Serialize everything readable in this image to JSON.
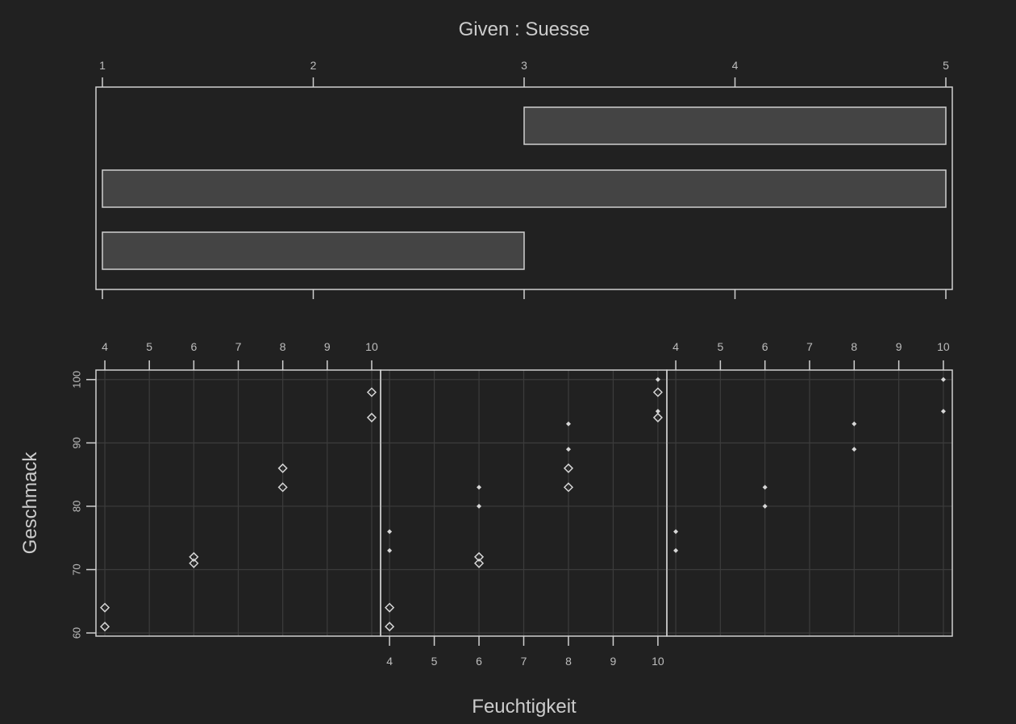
{
  "chart_data": {
    "type": "scatter",
    "title": "Given : Suesse",
    "xlabel": "Feuchtigkeit",
    "ylabel": "Geschmack",
    "given": {
      "variable": "Suesse",
      "xlim": [
        1,
        5
      ],
      "ticks": [
        1,
        2,
        3,
        4,
        5
      ],
      "intervals": [
        [
          3,
          5
        ],
        [
          1,
          5
        ],
        [
          1,
          3
        ]
      ]
    },
    "panels_xlim": [
      3.8,
      10.2
    ],
    "ylim": [
      59.5,
      101.5
    ],
    "x_ticks": [
      4,
      5,
      6,
      7,
      8,
      9,
      10
    ],
    "y_ticks": [
      60,
      70,
      80,
      90,
      100
    ],
    "grid": true,
    "panels": [
      {
        "name": "1",
        "x_tick_position": "top",
        "points": [
          {
            "x": 4,
            "y": 64,
            "marker": "diamond"
          },
          {
            "x": 4,
            "y": 61,
            "marker": "diamond"
          },
          {
            "x": 6,
            "y": 72,
            "marker": "diamond"
          },
          {
            "x": 6,
            "y": 71,
            "marker": "diamond"
          },
          {
            "x": 8,
            "y": 86,
            "marker": "diamond"
          },
          {
            "x": 8,
            "y": 83,
            "marker": "diamond"
          },
          {
            "x": 10,
            "y": 98,
            "marker": "diamond"
          },
          {
            "x": 10,
            "y": 94,
            "marker": "diamond"
          }
        ]
      },
      {
        "name": "2",
        "x_tick_position": "bottom",
        "points": [
          {
            "x": 4,
            "y": 64,
            "marker": "diamond"
          },
          {
            "x": 4,
            "y": 61,
            "marker": "diamond"
          },
          {
            "x": 6,
            "y": 72,
            "marker": "diamond"
          },
          {
            "x": 6,
            "y": 71,
            "marker": "diamond"
          },
          {
            "x": 8,
            "y": 86,
            "marker": "diamond"
          },
          {
            "x": 8,
            "y": 83,
            "marker": "diamond"
          },
          {
            "x": 10,
            "y": 98,
            "marker": "diamond"
          },
          {
            "x": 10,
            "y": 94,
            "marker": "diamond"
          },
          {
            "x": 4,
            "y": 76,
            "marker": "dot"
          },
          {
            "x": 4,
            "y": 73,
            "marker": "dot"
          },
          {
            "x": 6,
            "y": 83,
            "marker": "dot"
          },
          {
            "x": 6,
            "y": 80,
            "marker": "dot"
          },
          {
            "x": 8,
            "y": 93,
            "marker": "dot"
          },
          {
            "x": 8,
            "y": 89,
            "marker": "dot"
          },
          {
            "x": 10,
            "y": 100,
            "marker": "dot"
          },
          {
            "x": 10,
            "y": 95,
            "marker": "dot"
          }
        ]
      },
      {
        "name": "3",
        "x_tick_position": "top",
        "points": [
          {
            "x": 4,
            "y": 76,
            "marker": "dot"
          },
          {
            "x": 4,
            "y": 73,
            "marker": "dot"
          },
          {
            "x": 6,
            "y": 83,
            "marker": "dot"
          },
          {
            "x": 6,
            "y": 80,
            "marker": "dot"
          },
          {
            "x": 8,
            "y": 93,
            "marker": "dot"
          },
          {
            "x": 8,
            "y": 89,
            "marker": "dot"
          },
          {
            "x": 10,
            "y": 100,
            "marker": "dot"
          },
          {
            "x": 10,
            "y": 95,
            "marker": "dot"
          }
        ]
      }
    ]
  },
  "colors": {
    "background": "#212121",
    "frame": "#d0d0d0",
    "grid": "#3c3c3c",
    "bar_fill": "#444444",
    "marker": "#d6d6d6",
    "text": "#cccccc"
  }
}
